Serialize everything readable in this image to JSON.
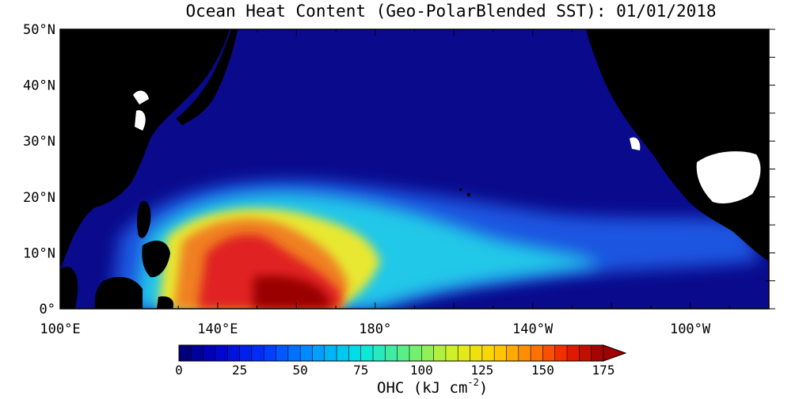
{
  "title": "Ocean Heat Content (Geo-PolarBlended SST): 01/01/2018",
  "map": {
    "lon_min": 100,
    "lon_max": 280,
    "lat_min": 0,
    "lat_max": 50,
    "lat_ticks": [
      {
        "value": 50,
        "label": "50°N"
      },
      {
        "value": 40,
        "label": "40°N"
      },
      {
        "value": 30,
        "label": "30°N"
      },
      {
        "value": 20,
        "label": "20°N"
      },
      {
        "value": 10,
        "label": "10°N"
      },
      {
        "value": 0,
        "label": "0°"
      }
    ],
    "lon_ticks": [
      {
        "value": 100,
        "label": "100°E"
      },
      {
        "value": 140,
        "label": "140°E"
      },
      {
        "value": 180,
        "label": "180°"
      },
      {
        "value": 220,
        "label": "140°W"
      },
      {
        "value": 260,
        "label": "100°W"
      }
    ],
    "colors": {
      "land": "#000000",
      "ocean": "#0a0a8c",
      "missing": "#ffffff"
    }
  },
  "colorbar": {
    "ticks": [
      "0",
      "25",
      "50",
      "75",
      "100",
      "125",
      "150",
      "175"
    ],
    "min": 0,
    "max": 175,
    "step": 5,
    "title": "OHC (kJ cm",
    "title_exp": "-2",
    "title_close": ")"
  }
}
